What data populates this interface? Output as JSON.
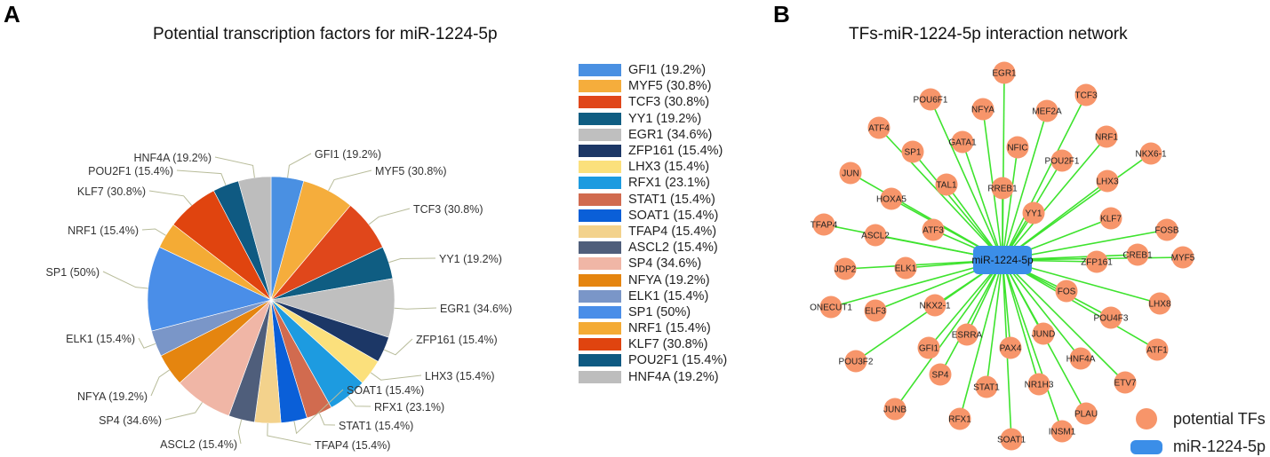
{
  "panel_a": {
    "letter": "A",
    "title": "Potential transcription factors for miR-1224-5p"
  },
  "panel_b": {
    "letter": "B",
    "title": "TFs-miR-1224-5p interaction network",
    "legend": {
      "tf_label": "potential TFs",
      "mirna_label": "miR-1224-5p"
    }
  },
  "chart_data": [
    {
      "type": "pie",
      "title": "Potential transcription factors for miR-1224-5p",
      "slices": [
        {
          "label": "GFI1 (19.2%)",
          "name": "GFI1",
          "value": 19.2,
          "color": "#4a90e2"
        },
        {
          "label": "MYF5 (30.8%)",
          "name": "MYF5",
          "value": 30.8,
          "color": "#f5ad3c"
        },
        {
          "label": "TCF3 (30.8%)",
          "name": "TCF3",
          "value": 30.8,
          "color": "#e0471b"
        },
        {
          "label": "YY1 (19.2%)",
          "name": "YY1",
          "value": 19.2,
          "color": "#0f5d82"
        },
        {
          "label": "EGR1 (34.6%)",
          "name": "EGR1",
          "value": 34.6,
          "color": "#bfbfbf"
        },
        {
          "label": "ZFP161 (15.4%)",
          "name": "ZFP161",
          "value": 15.4,
          "color": "#1c3766"
        },
        {
          "label": "LHX3 (15.4%)",
          "name": "LHX3",
          "value": 15.4,
          "color": "#fbe07c"
        },
        {
          "label": "RFX1 (23.1%)",
          "name": "RFX1",
          "value": 23.1,
          "color": "#1d9be0"
        },
        {
          "label": "STAT1 (15.4%)",
          "name": "STAT1",
          "value": 15.4,
          "color": "#d16b4f"
        },
        {
          "label": "SOAT1 (15.4%)",
          "name": "SOAT1",
          "value": 15.4,
          "color": "#0a5fd8"
        },
        {
          "label": "TFAP4 (15.4%)",
          "name": "TFAP4",
          "value": 15.4,
          "color": "#f3d28c"
        },
        {
          "label": "ASCL2 (15.4%)",
          "name": "ASCL2",
          "value": 15.4,
          "color": "#4f5e7b"
        },
        {
          "label": "SP4 (34.6%)",
          "name": "SP4",
          "value": 34.6,
          "color": "#f0b6a6"
        },
        {
          "label": "NFYA (19.2%)",
          "name": "NFYA",
          "value": 19.2,
          "color": "#e5850f"
        },
        {
          "label": "ELK1 (15.4%)",
          "name": "ELK1",
          "value": 15.4,
          "color": "#7a96c8"
        },
        {
          "label": "SP1 (50%)",
          "name": "SP1",
          "value": 50,
          "color": "#4a8ee8"
        },
        {
          "label": "NRF1 (15.4%)",
          "name": "NRF1",
          "value": 15.4,
          "color": "#f4ab35"
        },
        {
          "label": "KLF7 (30.8%)",
          "name": "KLF7",
          "value": 30.8,
          "color": "#e0440f"
        },
        {
          "label": "POU2F1 (15.4%)",
          "name": "POU2F1",
          "value": 15.4,
          "color": "#0f5a82"
        },
        {
          "label": "HNF4A (19.2%)",
          "name": "HNF4A",
          "value": 19.2,
          "color": "#bdbdbd"
        }
      ]
    },
    {
      "type": "network",
      "title": "TFs-miR-1224-5p interaction network",
      "center": "miR-1224-5p",
      "nodes": [
        "EGR1",
        "POU6F1",
        "NFYA",
        "MEF2A",
        "TCF3",
        "ATF4",
        "GATA1",
        "NFIC",
        "NRF1",
        "NKX6-1",
        "SP1",
        "POU2F1",
        "JUN",
        "TAL1",
        "RREB1",
        "LHX3",
        "HOXA5",
        "YY1",
        "KLF7",
        "FOSB",
        "TFAP4",
        "ASCL2",
        "ATF3",
        "CREB1",
        "MYF5",
        "ZFP161",
        "JDP2",
        "ELK1",
        "FOS",
        "LHX8",
        "ONECUT1",
        "ELF3",
        "NKX2-1",
        "POU4F3",
        "ESRRA",
        "JUND",
        "GFI1",
        "PAX4",
        "HNF4A",
        "ATF1",
        "POU3F2",
        "SP4",
        "STAT1",
        "NR1H3",
        "ETV7",
        "JUNB",
        "RFX1",
        "PLAU",
        "SOAT1",
        "INSM1"
      ],
      "tf_color": "#f7956a",
      "mirna_color": "#3b8ee8",
      "edge_color": "#3ee32e"
    }
  ]
}
